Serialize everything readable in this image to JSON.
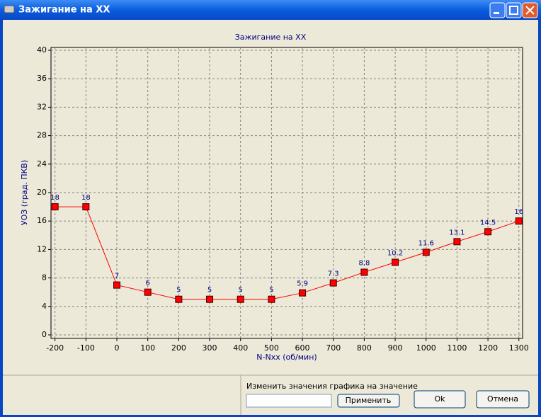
{
  "window": {
    "title": "Зажигание на XX"
  },
  "chart_data": {
    "type": "line",
    "title": "Зажигание на XX",
    "x_label": "N-Nxx (об/мин)",
    "y_label": "УОЗ (град. ПКВ)",
    "x": [
      -200,
      -100,
      0,
      100,
      200,
      300,
      400,
      500,
      600,
      700,
      800,
      900,
      1000,
      1100,
      1200,
      1300
    ],
    "values": [
      18,
      18,
      7,
      6,
      5,
      5,
      5,
      5,
      5.9,
      7.3,
      8.8,
      10.2,
      11.6,
      13.1,
      14.5,
      16
    ],
    "color": "#ff0000",
    "xlim": [
      -213,
      1312
    ],
    "ylim": [
      -0.5,
      40.4
    ],
    "xticks": [
      -200,
      -100,
      0,
      100,
      200,
      300,
      400,
      500,
      600,
      700,
      800,
      900,
      1000,
      1100,
      1200,
      1300
    ],
    "yticks": [
      0,
      4,
      8,
      12,
      16,
      20,
      24,
      28,
      32,
      36,
      40
    ],
    "grid": true
  },
  "controls": {
    "prompt": "Изменить значения графика на значение",
    "apply_button": "Применить",
    "ok_button": "Ok",
    "cancel_button": "Отмена"
  }
}
